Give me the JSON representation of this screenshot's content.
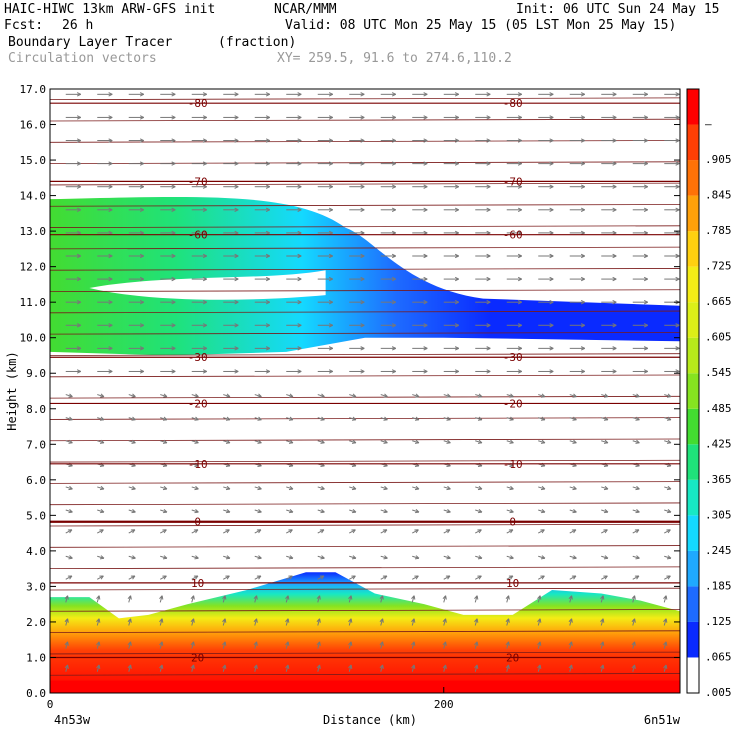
{
  "header": {
    "model": "HAIC-HIWC 13km ARW-GFS init",
    "org": "NCAR/MMM",
    "init": "Init: 06 UTC Sun 24 May 15",
    "fcst_label": "Fcst:",
    "fcst_value": "26 h",
    "valid": "Valid: 08 UTC Mon 25 May 15 (05 LST Mon 25 May 15)",
    "field": "Boundary Layer Tracer",
    "field_units": "(fraction)",
    "overlay": "Circulation vectors",
    "xy": "XY= 259.5, 91.6 to 274.6,110.2"
  },
  "chart_data": {
    "type": "heatmap",
    "ylabel": "Height (km)",
    "xlabel": "Distance (km)",
    "x_left_label": "4n53w",
    "x_right_label": "6n51w",
    "xlim": [
      0,
      320
    ],
    "ylim": [
      0,
      17
    ],
    "x_ticks": [
      {
        "value": 0,
        "label": "0"
      },
      {
        "value": 200,
        "label": "200"
      }
    ],
    "y_ticks": [
      "0.0",
      "1.0",
      "2.0",
      "3.0",
      "4.0",
      "5.0",
      "6.0",
      "7.0",
      "8.0",
      "9.0",
      "10.0",
      "11.0",
      "12.0",
      "13.0",
      "14.0",
      "15.0",
      "16.0",
      "17.0"
    ],
    "colorbar": {
      "labels": [
        ".005",
        ".065",
        ".125",
        ".185",
        ".245",
        ".305",
        ".365",
        ".425",
        ".485",
        ".545",
        ".605",
        ".665",
        ".725",
        ".785",
        ".845",
        ".905",
        "–"
      ],
      "colors": [
        "#ffffff",
        "#0a2aff",
        "#1e6bff",
        "#1fa9ff",
        "#14d9ff",
        "#17e8c4",
        "#1fe27a",
        "#43dc31",
        "#86e320",
        "#b7ea1b",
        "#dcef18",
        "#f4ec16",
        "#ffd010",
        "#ffa10a",
        "#ff7207",
        "#ff3f05",
        "#ff0000"
      ]
    },
    "isotherms": [
      {
        "value": -80,
        "label": "-80",
        "y": 16.6
      },
      {
        "value": -70,
        "label": "-70",
        "y": 14.4
      },
      {
        "value": -60,
        "label": "-60",
        "y": 12.9
      },
      {
        "value": -30,
        "label": "-30",
        "y": 9.45
      },
      {
        "value": -20,
        "label": "-20",
        "y": 8.15
      },
      {
        "value": -10,
        "label": "-10",
        "y": 6.45
      },
      {
        "value": 0,
        "label": "0",
        "y": 4.82
      },
      {
        "value": 10,
        "label": "10",
        "y": 3.1
      },
      {
        "value": 20,
        "label": "20",
        "y": 1.0
      }
    ],
    "tracer_boundary_layer_top": [
      [
        0,
        2.7
      ],
      [
        20,
        2.7
      ],
      [
        35,
        2.1
      ],
      [
        50,
        2.2
      ],
      [
        70,
        2.5
      ],
      [
        100,
        2.9
      ],
      [
        130,
        3.4
      ],
      [
        145,
        3.4
      ],
      [
        165,
        2.8
      ],
      [
        190,
        2.5
      ],
      [
        210,
        2.2
      ],
      [
        235,
        2.2
      ],
      [
        255,
        2.9
      ],
      [
        280,
        2.8
      ],
      [
        300,
        2.6
      ],
      [
        320,
        2.3
      ]
    ],
    "tracer_upper_layer": [
      [
        0,
        9.6
      ],
      [
        60,
        9.5
      ],
      [
        120,
        9.6
      ],
      [
        160,
        10.0
      ],
      [
        200,
        10.0
      ],
      [
        320,
        9.9
      ]
    ]
  }
}
